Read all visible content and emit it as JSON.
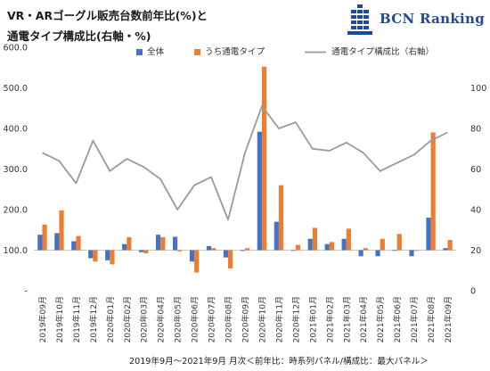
{
  "header": {
    "title_line1": "VR・ARゴーグル販売台数前年比(%)と",
    "title_line2": "通電タイプ構成比(右軸・%)"
  },
  "logo": {
    "text": "BCN Ranking",
    "icon": "bcn-building-icon",
    "color": "#1d4a9e"
  },
  "footer": {
    "text": "2019年9月～2021年9月 月次＜前年比：時系列パネル/構成比：最大パネル＞"
  },
  "colors": {
    "series1": "#4472c4",
    "series2": "#ed7d31",
    "series3": "#a5a5a5"
  },
  "chart_data": {
    "type": "bar",
    "categories": [
      "2019年09月",
      "2019年10月",
      "2019年11月",
      "2019年12月",
      "2020年01月",
      "2020年02月",
      "2020年03月",
      "2020年04月",
      "2020年05月",
      "2020年06月",
      "2020年07月",
      "2020年08月",
      "2020年09月",
      "2020年10月",
      "2020年11月",
      "2020年12月",
      "2021年01月",
      "2021年02月",
      "2021年03月",
      "2021年04月",
      "2021年05月",
      "2021年06月",
      "2021年07月",
      "2021年08月",
      "2021年09月"
    ],
    "series": [
      {
        "name": "全体",
        "kind": "bar",
        "axis": "left",
        "values": [
          138,
          142,
          122,
          80,
          75,
          115,
          95,
          138,
          133,
          72,
          110,
          82,
          98,
          392,
          170,
          100,
          128,
          115,
          128,
          85,
          85,
          100,
          85,
          180,
          105
        ]
      },
      {
        "name": "うち通電タイプ",
        "kind": "bar",
        "axis": "left",
        "values": [
          163,
          198,
          135,
          72,
          65,
          132,
          92,
          132,
          97,
          45,
          105,
          55,
          105,
          552,
          260,
          113,
          155,
          120,
          153,
          105,
          128,
          140,
          100,
          390,
          125
        ]
      },
      {
        "name": "通電タイプ構成比（右軸）",
        "kind": "line",
        "axis": "right",
        "values": [
          68,
          64,
          53,
          74,
          59,
          65,
          61,
          55,
          40,
          52,
          56,
          35,
          68,
          91,
          80,
          83,
          70,
          69,
          73,
          68,
          59,
          63,
          67,
          74,
          78
        ]
      }
    ],
    "y_left": {
      "ticks": [
        "-",
        "100.0",
        "200.0",
        "300.0",
        "400.0",
        "500.0",
        "600.0"
      ],
      "range": [
        0,
        600
      ],
      "baseline": 100
    },
    "y_right": {
      "ticks": [
        "0",
        "20",
        "40",
        "60",
        "80",
        "100"
      ],
      "range": [
        0,
        120
      ]
    },
    "legend_position": "top",
    "grid": false
  }
}
